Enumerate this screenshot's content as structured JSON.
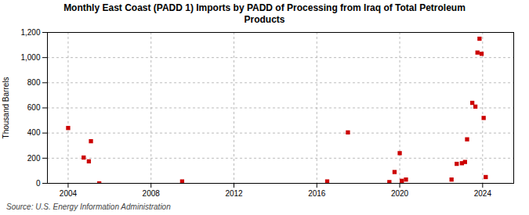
{
  "chart_data": {
    "type": "scatter",
    "title": "Monthly East Coast (PADD 1) Imports by PADD of Processing from Iraq of Total Petroleum\nProducts",
    "ylabel": "Thousand Barrels",
    "source": "Source: U.S. Energy Information Administration",
    "color": "#cc0000",
    "marker": "square",
    "grid": true,
    "xlim": [
      2003.0,
      2025.5
    ],
    "ylim": [
      0,
      1200
    ],
    "xticks": [
      2004,
      2008,
      2012,
      2016,
      2020,
      2024
    ],
    "yticks": [
      0,
      200,
      400,
      600,
      800,
      {
        "value": 1000,
        "label": "1,000"
      },
      {
        "value": 1200,
        "label": "1,200"
      }
    ],
    "x": [
      2004.0,
      2004.75,
      2005.0,
      2005.1,
      2005.5,
      2009.5,
      2016.5,
      2017.5,
      2019.5,
      2019.75,
      2020.0,
      2020.1,
      2020.3,
      2022.5,
      2022.75,
      2023.0,
      2023.15,
      2023.25,
      2023.5,
      2023.65,
      2023.75,
      2023.85,
      2023.95,
      2024.05,
      2024.15
    ],
    "values": [
      440,
      205,
      175,
      335,
      0,
      15,
      15,
      405,
      10,
      90,
      240,
      20,
      30,
      30,
      155,
      160,
      170,
      350,
      640,
      610,
      1040,
      1150,
      1030,
      520,
      50
    ]
  }
}
